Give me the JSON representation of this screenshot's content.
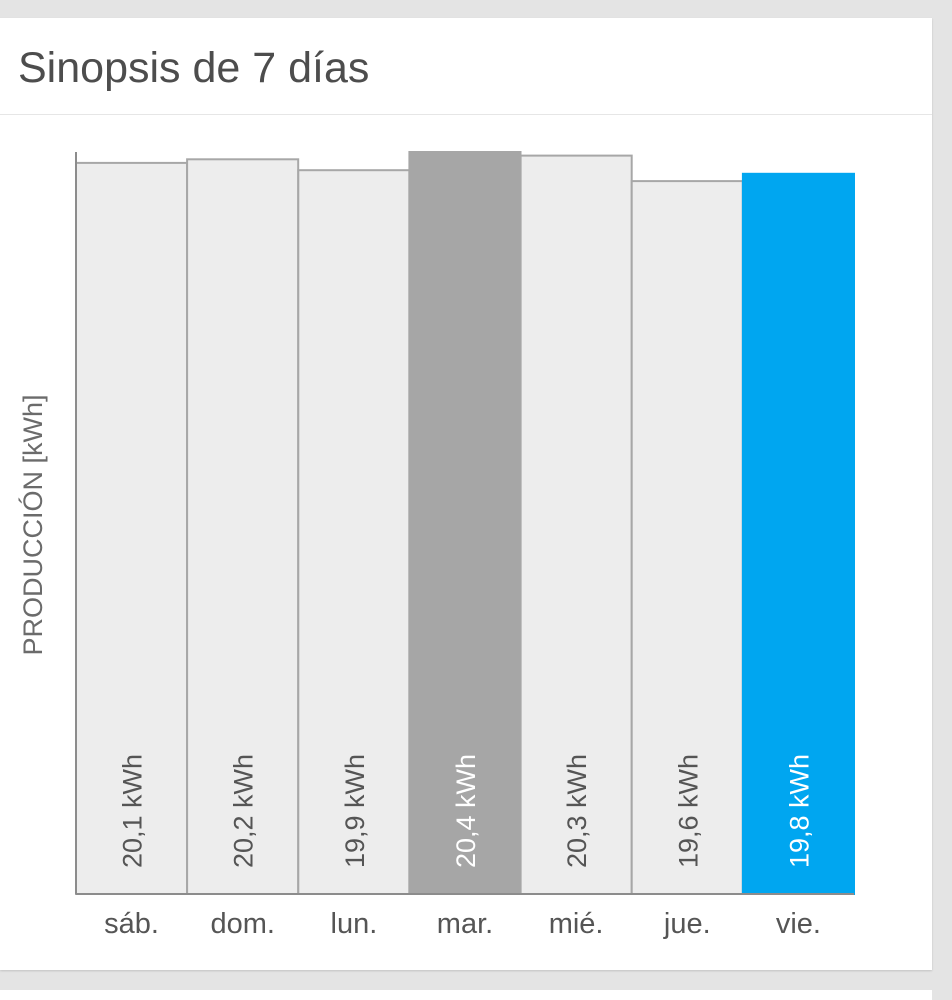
{
  "card": {
    "title": "Sinopsis de 7 días"
  },
  "chart_data": {
    "type": "bar",
    "title": "Sinopsis de 7 días",
    "ylabel": "PRODUCCIÓN [kWh]",
    "xlabel": "",
    "unit": "kWh",
    "categories": [
      "sáb.",
      "dom.",
      "lun.",
      "mar.",
      "mié.",
      "jue.",
      "vie."
    ],
    "values": [
      20.1,
      20.2,
      19.9,
      20.4,
      20.3,
      19.6,
      19.8
    ],
    "value_labels": [
      "20,1 kWh",
      "20,2 kWh",
      "19,9 kWh",
      "20,4 kWh",
      "20,3 kWh",
      "19,6 kWh",
      "19,8 kWh"
    ],
    "ylim": [
      0,
      20.4
    ],
    "grid": false,
    "colors": {
      "default_bar": "#ededed",
      "default_stroke": "#a7a7a7",
      "highlight_max": "#a6a6a6",
      "selected": "#00a6f0",
      "label_dark": "#555555",
      "label_light": "#ffffff",
      "axis": "#8c8c8c"
    },
    "highlight_index": 3,
    "selected_index": 6
  }
}
